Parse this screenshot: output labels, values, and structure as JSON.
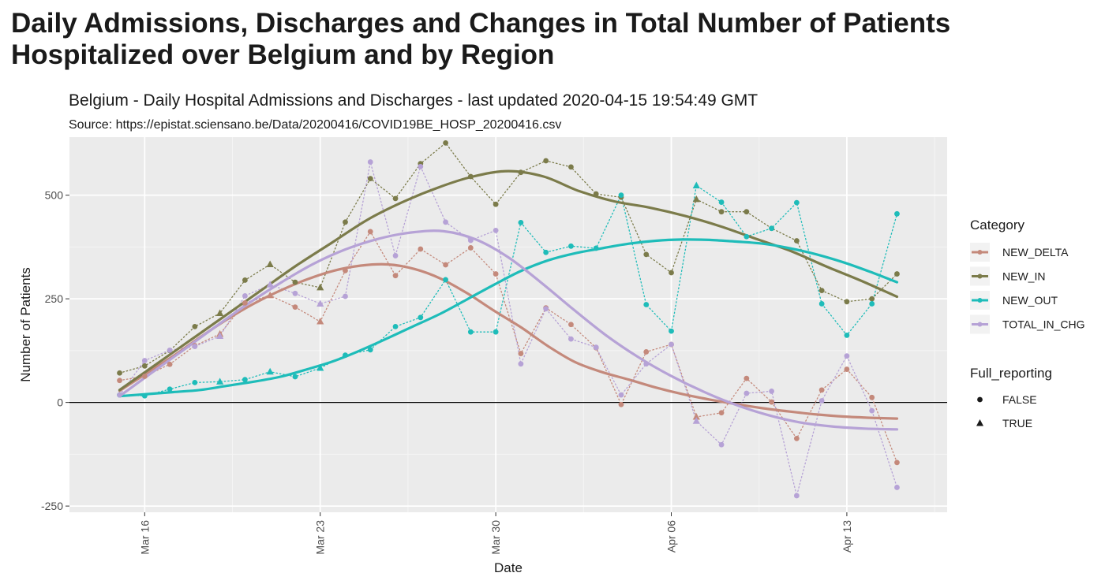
{
  "page": {
    "title": "Daily Admissions, Discharges and Changes in Total Number of Patients Hospitalized over Belgium and by Region"
  },
  "chart_data": {
    "type": "line",
    "title": "Belgium - Daily Hospital Admissions and Discharges - last updated 2020-04-15 19:54:49 GMT",
    "subtitle": "Source: https://epistat.sciensano.be/Data/20200416/COVID19BE_HOSP_20200416.csv",
    "xlabel": "Date",
    "ylabel": "Number of Patients",
    "x_ticks": [
      "Mar 16",
      "Mar 23",
      "Mar 30",
      "Apr 06",
      "Apr 13"
    ],
    "y_ticks": [
      -250,
      0,
      250,
      500
    ],
    "ylim": [
      -265,
      640
    ],
    "x": [
      "2020-03-15",
      "2020-03-16",
      "2020-03-17",
      "2020-03-18",
      "2020-03-19",
      "2020-03-20",
      "2020-03-21",
      "2020-03-22",
      "2020-03-23",
      "2020-03-24",
      "2020-03-25",
      "2020-03-26",
      "2020-03-27",
      "2020-03-28",
      "2020-03-29",
      "2020-03-30",
      "2020-03-31",
      "2020-04-01",
      "2020-04-02",
      "2020-04-03",
      "2020-04-04",
      "2020-04-05",
      "2020-04-06",
      "2020-04-07",
      "2020-04-08",
      "2020-04-09",
      "2020-04-10",
      "2020-04-11",
      "2020-04-12",
      "2020-04-13",
      "2020-04-14",
      "2020-04-15"
    ],
    "full_reporting": [
      false,
      false,
      false,
      false,
      true,
      false,
      true,
      false,
      true,
      false,
      false,
      false,
      false,
      false,
      false,
      false,
      false,
      false,
      false,
      false,
      false,
      false,
      false,
      true,
      false,
      false,
      false,
      false,
      false,
      false,
      false,
      false
    ],
    "series": [
      {
        "name": "NEW_DELTA",
        "color": "#c4897b",
        "values": [
          53,
          63,
          92,
          137,
          165,
          240,
          258,
          230,
          195,
          318,
          412,
          306,
          370,
          332,
          373,
          310,
          118,
          228,
          188,
          132,
          -5,
          122,
          140,
          -35,
          -25,
          58,
          1,
          -87,
          30,
          80,
          12,
          -145
        ],
        "smooth": [
          28,
          70,
          112,
          157,
          200,
          238,
          270,
          297,
          318,
          330,
          333,
          322,
          298,
          262,
          220,
          180,
          135,
          97,
          73,
          55,
          36,
          20,
          7,
          -4,
          -14,
          -22,
          -29,
          -34,
          -37,
          -39
        ]
      },
      {
        "name": "NEW_IN",
        "color": "#7b7b4a",
        "values": [
          71,
          88,
          125,
          183,
          215,
          295,
          333,
          290,
          277,
          435,
          540,
          492,
          576,
          626,
          545,
          478,
          555,
          583,
          568,
          503,
          495,
          357,
          313,
          490,
          460,
          460,
          420,
          390,
          270,
          243,
          250,
          310
        ],
        "smooth": [
          30,
          90,
          150,
          210,
          270,
          330,
          385,
          440,
          483,
          518,
          545,
          558,
          545,
          510,
          485,
          470,
          450,
          425,
          395,
          365,
          328,
          293,
          255
        ]
      },
      {
        "name": "NEW_OUT",
        "color": "#1ebcb9",
        "values": [
          18,
          16,
          32,
          48,
          50,
          55,
          74,
          62,
          83,
          114,
          127,
          183,
          205,
          296,
          170,
          170,
          434,
          362,
          377,
          372,
          500,
          236,
          172,
          523,
          483,
          400,
          420,
          482,
          238,
          162,
          238,
          455
        ],
        "smooth": [
          15,
          20,
          25,
          30,
          40,
          50,
          62,
          80,
          100,
          126,
          155,
          185,
          215,
          250,
          285,
          318,
          343,
          360,
          372,
          383,
          390,
          393,
          392,
          388,
          383,
          372,
          357,
          338,
          315,
          290
        ]
      },
      {
        "name": "TOTAL_IN_CHG",
        "color": "#b6a2d6",
        "values": [
          18,
          101,
          126,
          135,
          160,
          257,
          284,
          263,
          238,
          256,
          580,
          354,
          569,
          435,
          391,
          415,
          93,
          226,
          153,
          133,
          18,
          93,
          140,
          -45,
          -102,
          22,
          27,
          -225,
          4,
          112,
          -20,
          -205
        ],
        "smooth": [
          15,
          72,
          128,
          185,
          240,
          290,
          335,
          370,
          395,
          410,
          413,
          393,
          350,
          290,
          225,
          163,
          110,
          65,
          27,
          -5,
          -30,
          -48,
          -58,
          -63,
          -65
        ]
      }
    ],
    "legend": {
      "position": "right",
      "category_title": "Category",
      "shape_title": "Full_reporting",
      "shape_entries": [
        {
          "label": "FALSE",
          "shape": "circle"
        },
        {
          "label": "TRUE",
          "shape": "triangle"
        }
      ]
    },
    "grid": true,
    "hline_y": 0
  }
}
